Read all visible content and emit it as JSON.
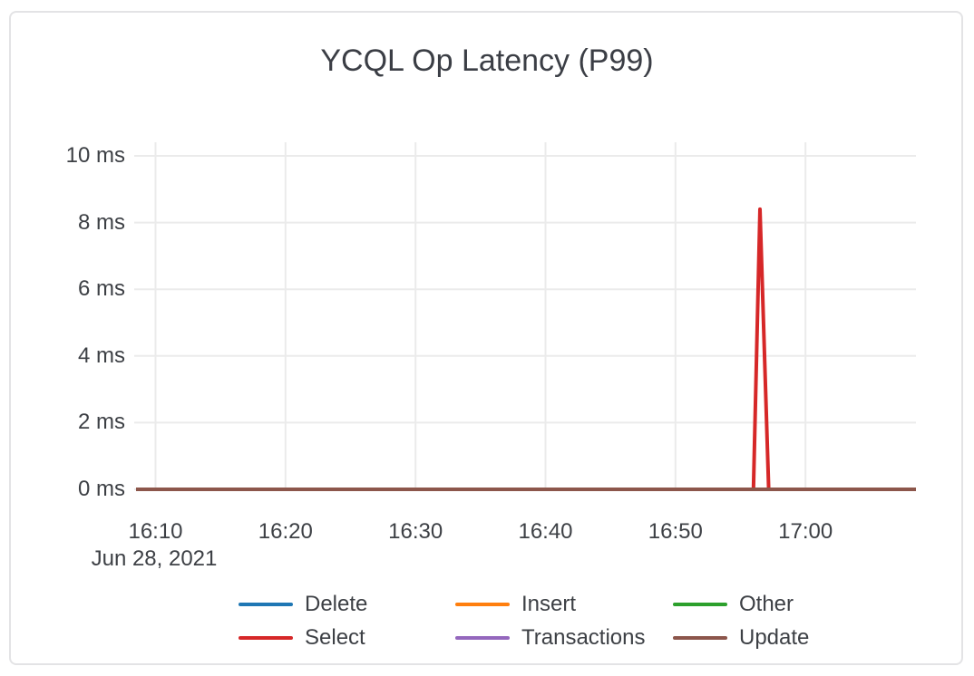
{
  "colors": {
    "background": "#ffffff",
    "card_border": "#e3e3e5",
    "grid": "#ebebeb",
    "text": "#3d4045"
  },
  "chart_data": {
    "type": "line",
    "title": "YCQL Op Latency (P99)",
    "xlabel": "",
    "ylabel": "",
    "grid": true,
    "legend_position": "bottom",
    "x_axis": {
      "start": "16:08:30",
      "end": "17:08:30",
      "ticks": [
        "16:10",
        "16:20",
        "16:30",
        "16:40",
        "16:50",
        "17:00"
      ],
      "date_label": "Jun 28, 2021"
    },
    "y_axis": {
      "min": 0,
      "max": 10,
      "unit": "ms",
      "ticks": [
        {
          "value": 0,
          "label": "0 ms"
        },
        {
          "value": 2,
          "label": "2 ms"
        },
        {
          "value": 4,
          "label": "4 ms"
        },
        {
          "value": 6,
          "label": "6 ms"
        },
        {
          "value": 8,
          "label": "8 ms"
        },
        {
          "value": 10,
          "label": "10 ms"
        }
      ]
    },
    "series": [
      {
        "name": "Delete",
        "color": "#1f77b4",
        "points": [
          [
            "16:08:30",
            0
          ],
          [
            "17:08:30",
            0
          ]
        ]
      },
      {
        "name": "Insert",
        "color": "#ff7f0e",
        "points": [
          [
            "16:08:30",
            0
          ],
          [
            "17:08:30",
            0
          ]
        ]
      },
      {
        "name": "Other",
        "color": "#2ca02c",
        "points": [
          [
            "16:08:30",
            0
          ],
          [
            "17:08:30",
            0
          ]
        ]
      },
      {
        "name": "Select",
        "color": "#d62728",
        "points": [
          [
            "16:08:30",
            0
          ],
          [
            "16:56:00",
            0
          ],
          [
            "16:56:30",
            8.4
          ],
          [
            "16:57:10",
            0
          ],
          [
            "17:08:30",
            0
          ]
        ]
      },
      {
        "name": "Transactions",
        "color": "#9467bd",
        "points": [
          [
            "16:08:30",
            0
          ],
          [
            "17:08:30",
            0
          ]
        ]
      },
      {
        "name": "Update",
        "color": "#8c564b",
        "points": [
          [
            "16:08:30",
            0
          ],
          [
            "17:08:30",
            0
          ]
        ]
      }
    ]
  }
}
